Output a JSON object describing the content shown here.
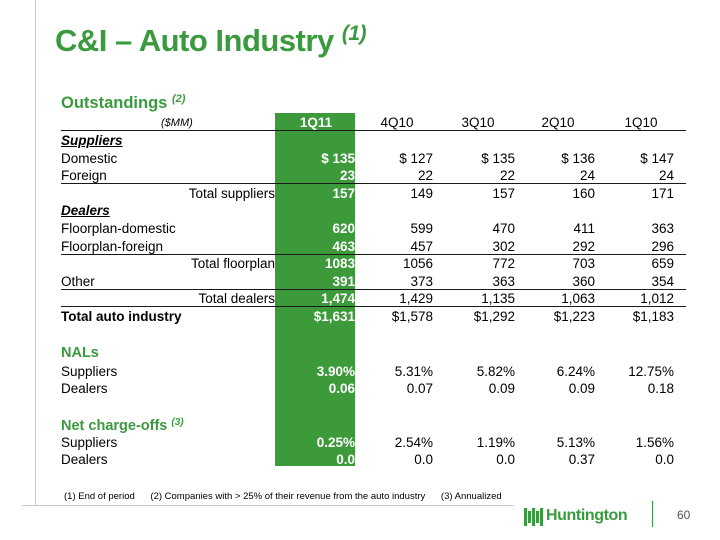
{
  "title": {
    "text": "C&I – Auto Industry",
    "note": "(1)"
  },
  "subtitle": {
    "text": "Outstandings",
    "note": "(2)"
  },
  "units": "($MM)",
  "columns": [
    "1Q11",
    "4Q10",
    "3Q10",
    "2Q10",
    "1Q10"
  ],
  "rows": [
    {
      "label": "Suppliers",
      "style": "sec",
      "values": [
        "",
        "",
        "",
        "",
        ""
      ]
    },
    {
      "label": "Domestic",
      "values": [
        "$    135",
        "$   127",
        "$   135",
        "$   136",
        "$   147"
      ]
    },
    {
      "label": "Foreign",
      "line": true,
      "values": [
        "23",
        "22",
        "22",
        "24",
        "24"
      ]
    },
    {
      "label": "Total suppliers",
      "align": "right",
      "values": [
        "157",
        "149",
        "157",
        "160",
        "171"
      ]
    },
    {
      "label": "Dealers",
      "style": "sec",
      "values": [
        "",
        "",
        "",
        "",
        ""
      ]
    },
    {
      "label": "Floorplan-domestic",
      "values": [
        "620",
        "599",
        "470",
        "411",
        "363"
      ]
    },
    {
      "label": "Floorplan-foreign",
      "line": true,
      "values": [
        "463",
        "457",
        "302",
        "292",
        "296"
      ]
    },
    {
      "label": "Total floorplan",
      "align": "right",
      "values": [
        "1083",
        "1056",
        "772",
        "703",
        "659"
      ]
    },
    {
      "label": "Other",
      "line": true,
      "values": [
        "391",
        "373",
        "363",
        "360",
        "354"
      ]
    },
    {
      "label": "Total dealers",
      "align": "right",
      "line": true,
      "values": [
        "1,474",
        "1,429",
        "1,135",
        "1,063",
        "1,012"
      ]
    },
    {
      "label": "Total auto industry",
      "style": "bold",
      "values": [
        "$1,631",
        "$1,578",
        "$1,292",
        "$1,223",
        "$1,183"
      ]
    }
  ],
  "nals": {
    "heading": "NALs",
    "rows": [
      {
        "label": "Suppliers",
        "values": [
          "3.90%",
          "5.31%",
          "5.82%",
          "6.24%",
          "12.75%"
        ]
      },
      {
        "label": "Dealers",
        "values": [
          "0.06",
          "0.07",
          "0.09",
          "0.09",
          "0.18"
        ]
      }
    ]
  },
  "nco": {
    "heading": "Net charge-offs",
    "note": "(3)",
    "rows": [
      {
        "label": "Suppliers",
        "values": [
          "0.25%",
          "2.54%",
          "1.19%",
          "5.13%",
          "1.56%"
        ]
      },
      {
        "label": "Dealers",
        "values": [
          "0.0",
          "0.0",
          "0.0",
          "0.37",
          "0.0"
        ]
      }
    ]
  },
  "footnotes": [
    "(1)   End of period",
    "(2)  Companies with > 25% of their revenue from the auto industry",
    "(3)  Annualized"
  ],
  "logo_text": "Huntington",
  "page_number": "60",
  "colors": {
    "brand_green": "#3a9a3e",
    "highlight": "#3c9a3b"
  }
}
